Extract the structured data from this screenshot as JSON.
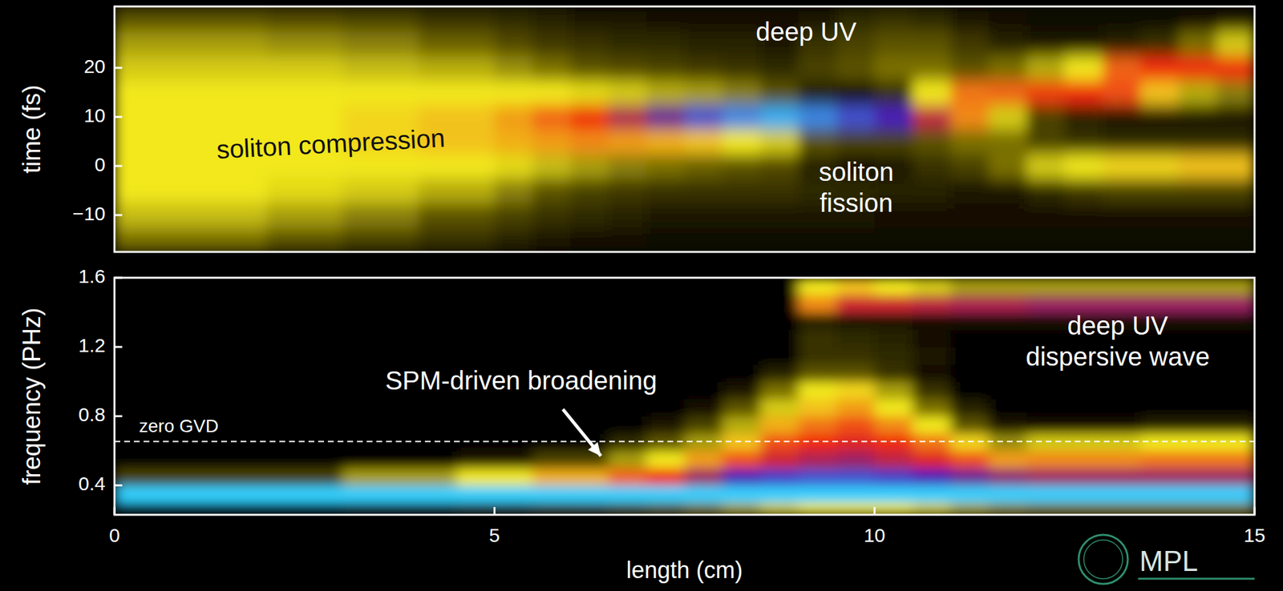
{
  "chart_data": [
    {
      "type": "heatmap",
      "y_label": "time (fs)",
      "xlim": [
        0,
        15
      ],
      "ylim": [
        -17.5,
        32.5
      ],
      "yticks": [
        {
          "value": -10,
          "label": "−10"
        },
        0,
        10,
        20
      ],
      "tick_labels": "y",
      "x_bins": [
        0,
        0.5,
        1,
        1.5,
        2,
        2.5,
        3,
        3.5,
        4,
        4.5,
        5,
        5.5,
        6,
        6.5,
        7,
        7.5,
        8,
        8.5,
        9,
        9.5,
        10,
        10.5,
        11,
        11.5,
        12,
        12.5,
        13,
        13.5,
        14,
        14.5,
        15
      ],
      "y_bins": [
        -17.5,
        -12.5,
        -7.5,
        -2.5,
        2.5,
        7.5,
        12.5,
        17.5,
        22.5,
        27.5,
        32.5
      ],
      "color_range": [
        0,
        5
      ],
      "z": [
        [
          1.2,
          1.7,
          2,
          2,
          2,
          2,
          2,
          1.8,
          1.5,
          1.0
        ],
        [
          1.2,
          1.7,
          2,
          2,
          2,
          2,
          2,
          1.8,
          1.5,
          1.0
        ],
        [
          1.2,
          1.7,
          2,
          2,
          2,
          2,
          2,
          1.8,
          1.5,
          1.0
        ],
        [
          1.2,
          1.7,
          2,
          2,
          2,
          2,
          2,
          1.8,
          1.5,
          1.0
        ],
        [
          1.0,
          1.5,
          1.9,
          2,
          2,
          2,
          2,
          1.8,
          1.4,
          0.9
        ],
        [
          1.0,
          1.5,
          1.9,
          2,
          2,
          2,
          2,
          1.8,
          1.4,
          0.9
        ],
        [
          0.8,
          1.3,
          1.8,
          2,
          2.1,
          2.1,
          2,
          1.7,
          1.3,
          0.8
        ],
        [
          0.8,
          1.3,
          1.8,
          2,
          2.1,
          2.1,
          2,
          1.7,
          1.3,
          0.8
        ],
        [
          0.6,
          1.0,
          1.6,
          2,
          2.2,
          2.2,
          2,
          1.6,
          1.1,
          0.6
        ],
        [
          0.6,
          1.0,
          1.6,
          2,
          2.2,
          2.2,
          2,
          1.6,
          1.1,
          0.6
        ],
        [
          0.4,
          0.8,
          1.3,
          1.9,
          2.3,
          2.4,
          2,
          1.4,
          0.9,
          0.5
        ],
        [
          0.3,
          0.6,
          1.0,
          1.7,
          2.4,
          2.7,
          2,
          1.2,
          0.7,
          0.4
        ],
        [
          0.2,
          0.5,
          0.8,
          1.5,
          2.5,
          3.0,
          1.9,
          1.0,
          0.6,
          0.3
        ],
        [
          0.2,
          0.4,
          0.7,
          1.3,
          2.4,
          3.4,
          1.8,
          0.9,
          0.5,
          0.3
        ],
        [
          0.1,
          0.3,
          0.6,
          1.2,
          2.3,
          3.8,
          1.6,
          0.8,
          0.5,
          0.2
        ],
        [
          0.1,
          0.3,
          0.6,
          1.1,
          2.2,
          4.3,
          1.5,
          0.7,
          0.4,
          0.2
        ],
        [
          0.1,
          0.3,
          0.6,
          1.0,
          2.0,
          4.6,
          1.3,
          0.6,
          0.4,
          0.2
        ],
        [
          0.1,
          0.3,
          0.6,
          0.9,
          1.8,
          4.8,
          1.0,
          0.5,
          0.3,
          0.2
        ],
        [
          0.1,
          0.3,
          0.5,
          0.4,
          1.0,
          4.6,
          0.4,
          0.8,
          0.6,
          0.3
        ],
        [
          0.1,
          0.3,
          0.5,
          0.2,
          0.8,
          4.3,
          0.3,
          1.0,
          0.8,
          0.5
        ],
        [
          0.1,
          0.2,
          0.4,
          0.3,
          0.8,
          4.0,
          0.6,
          1.2,
          1.0,
          0.6
        ],
        [
          0.1,
          0.2,
          0.4,
          0.6,
          1.0,
          3.3,
          2.0,
          1.2,
          1.0,
          0.5
        ],
        [
          0.1,
          0.2,
          0.3,
          0.8,
          1.2,
          2.5,
          2.6,
          1.0,
          0.7,
          0.3
        ],
        [
          0.1,
          0.2,
          0.3,
          1.2,
          1.2,
          1.8,
          2.7,
          1.2,
          0.4,
          0.2
        ],
        [
          0.1,
          0.2,
          0.5,
          1.8,
          0.8,
          0.8,
          2.9,
          1.6,
          0.3,
          0.1
        ],
        [
          0.1,
          0.2,
          0.7,
          2.0,
          0.6,
          0.4,
          3.0,
          2.0,
          0.3,
          0.1
        ],
        [
          0.1,
          0.2,
          0.8,
          2.1,
          0.5,
          0.3,
          2.8,
          2.7,
          0.4,
          0.1
        ],
        [
          0.1,
          0.2,
          0.8,
          2.1,
          0.5,
          0.3,
          2.2,
          3.0,
          0.6,
          0.1
        ],
        [
          0.1,
          0.2,
          0.8,
          2.2,
          0.5,
          0.3,
          1.6,
          3.0,
          1.2,
          0.2
        ],
        [
          0.1,
          0.2,
          0.8,
          2.2,
          0.5,
          0.3,
          1.3,
          3.0,
          1.8,
          0.3
        ]
      ],
      "annotations": [
        {
          "text": "soliton compression",
          "color": "#111111"
        },
        {
          "text": "deep UV",
          "color": "#ffffff"
        },
        {
          "text": "soliton fission",
          "color": "#ffffff"
        }
      ]
    },
    {
      "type": "heatmap",
      "y_label": "frequency (PHz)",
      "x_label": "length (cm)",
      "xlim": [
        0,
        15
      ],
      "ylim": [
        0.23,
        1.6
      ],
      "xticks": [
        0,
        5,
        10,
        15
      ],
      "yticks": [
        0.4,
        0.8,
        1.2,
        1.6
      ],
      "x_bins": [
        0,
        0.5,
        1,
        1.5,
        2,
        2.5,
        3,
        3.5,
        4,
        4.5,
        5,
        5.5,
        6,
        6.5,
        7,
        7.5,
        8,
        8.5,
        9,
        9.5,
        10,
        10.5,
        11,
        11.5,
        12,
        12.5,
        13,
        13.5,
        14,
        14.5,
        15
      ],
      "y_bins": [
        0.23,
        0.3,
        0.4,
        0.5,
        0.6,
        0.7,
        0.8,
        0.9,
        1.0,
        1.1,
        1.2,
        1.3,
        1.4,
        1.5,
        1.6
      ],
      "color_range": [
        0,
        5
      ],
      "z": [
        [
          0,
          5,
          0.8,
          0,
          0,
          0,
          0,
          0,
          0,
          0,
          0,
          0,
          0,
          0
        ],
        [
          0,
          5,
          0.8,
          0,
          0,
          0,
          0,
          0,
          0,
          0,
          0,
          0,
          0,
          0
        ],
        [
          0,
          5,
          0.8,
          0,
          0,
          0,
          0,
          0,
          0,
          0,
          0,
          0,
          0,
          0
        ],
        [
          0,
          5,
          0.8,
          0,
          0,
          0,
          0,
          0,
          0,
          0,
          0,
          0,
          0,
          0
        ],
        [
          0,
          5,
          0.8,
          0,
          0,
          0,
          0,
          0,
          0,
          0,
          0,
          0,
          0,
          0
        ],
        [
          0,
          5,
          0.8,
          0,
          0,
          0,
          0,
          0,
          0,
          0,
          0,
          0,
          0,
          0
        ],
        [
          0.2,
          5,
          1.5,
          0,
          0,
          0,
          0,
          0,
          0,
          0,
          0,
          0,
          0,
          0
        ],
        [
          0.2,
          5,
          1.5,
          0,
          0,
          0,
          0,
          0,
          0,
          0,
          0,
          0,
          0,
          0
        ],
        [
          0.2,
          5,
          1.5,
          0,
          0,
          0,
          0,
          0,
          0,
          0,
          0,
          0,
          0,
          0
        ],
        [
          0.4,
          5,
          2,
          0.3,
          0,
          0,
          0,
          0,
          0,
          0,
          0,
          0,
          0,
          0
        ],
        [
          0.4,
          5,
          2,
          0.3,
          0,
          0,
          0,
          0,
          0,
          0,
          0,
          0,
          0,
          0
        ],
        [
          0.6,
          5,
          2.3,
          0.8,
          0,
          0,
          0,
          0,
          0,
          0,
          0,
          0,
          0,
          0
        ],
        [
          0.6,
          5,
          2.3,
          0.8,
          0,
          0,
          0,
          0,
          0,
          0,
          0,
          0,
          0,
          0
        ],
        [
          0.8,
          5,
          2.7,
          1.5,
          0.5,
          0,
          0,
          0,
          0,
          0,
          0,
          0,
          0,
          0
        ],
        [
          1,
          5,
          3,
          2,
          1,
          0.3,
          0,
          0,
          0,
          0,
          0,
          0,
          0,
          0
        ],
        [
          1.2,
          5,
          3.5,
          2.4,
          1.5,
          0.8,
          0.2,
          0,
          0,
          0,
          0,
          0,
          0,
          0
        ],
        [
          1.5,
          5,
          4,
          2.8,
          2.2,
          1.6,
          1,
          0.3,
          0,
          0,
          0,
          0,
          0,
          0
        ],
        [
          1.8,
          5,
          4.2,
          3.2,
          2.8,
          2.3,
          1.8,
          1.2,
          0.4,
          0,
          0,
          0,
          0,
          0
        ],
        [
          2,
          5,
          4.3,
          3.4,
          3,
          2.6,
          2.2,
          2,
          1,
          0.6,
          0.6,
          0.4,
          2.5,
          2
        ],
        [
          2,
          5,
          4.3,
          3.5,
          3.1,
          2.8,
          2.4,
          2.1,
          1,
          0.6,
          0.5,
          0.3,
          3.2,
          2.2
        ],
        [
          2,
          5,
          4.2,
          3.3,
          3,
          2.5,
          2,
          1.5,
          0.6,
          0.5,
          0.4,
          0.3,
          3.2,
          2
        ],
        [
          1.8,
          5,
          4,
          3.1,
          2.6,
          2,
          1.2,
          0.6,
          0.2,
          0.3,
          0.2,
          0.2,
          3.3,
          1.8
        ],
        [
          1.5,
          5,
          3.8,
          2.8,
          2.1,
          1,
          0.4,
          0,
          0,
          0,
          0,
          0.2,
          3.4,
          1.5
        ],
        [
          1.3,
          5,
          3.6,
          2.4,
          1.4,
          0.3,
          0,
          0,
          0,
          0,
          0,
          0.2,
          3.4,
          1.5
        ],
        [
          1.2,
          5,
          3.5,
          2.5,
          1.8,
          0.2,
          0,
          0,
          0,
          0,
          0,
          0.2,
          3.5,
          1.5
        ],
        [
          1.2,
          5,
          3.5,
          2.5,
          1.8,
          0.2,
          0,
          0,
          0,
          0,
          0,
          0.2,
          3.5,
          1.5
        ],
        [
          1.2,
          5,
          3.5,
          2.5,
          1.8,
          0.2,
          0,
          0,
          0,
          0,
          0,
          0.2,
          3.5,
          1.5
        ],
        [
          1.2,
          5,
          3.5,
          2.6,
          2,
          0.4,
          0,
          0,
          0,
          0,
          0,
          0.2,
          3.5,
          1.5
        ],
        [
          1.2,
          5,
          3.5,
          2.6,
          2,
          0.4,
          0,
          0,
          0,
          0,
          0,
          0.2,
          3.5,
          1.5
        ],
        [
          1.2,
          5,
          3.5,
          2.6,
          2,
          0.4,
          0,
          0,
          0,
          0,
          0,
          0.2,
          3.5,
          1.5
        ]
      ],
      "reference_line": {
        "value": 0.654,
        "label": "zero GVD"
      },
      "annotations": [
        {
          "text": "SPM-driven broadening",
          "color": "#ffffff"
        },
        {
          "text": "deep UV dispersive wave",
          "color": "#ffffff"
        }
      ]
    }
  ],
  "logo": "MPL"
}
